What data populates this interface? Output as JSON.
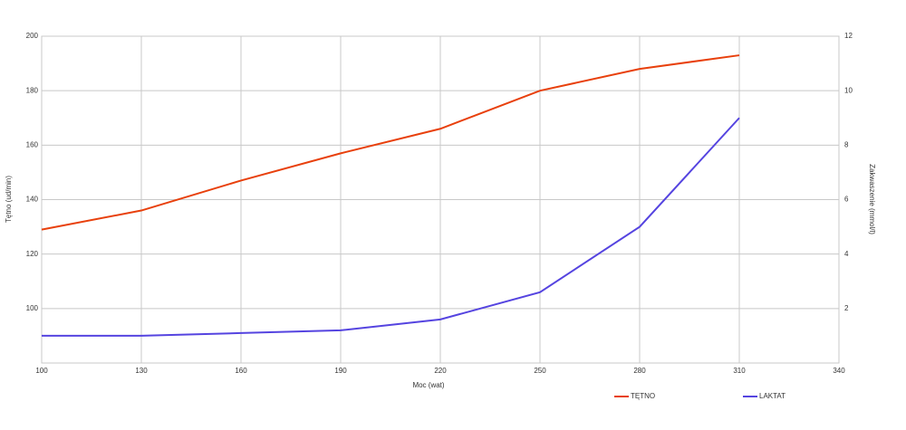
{
  "chart_data": {
    "type": "line",
    "x": [
      100,
      130,
      160,
      190,
      220,
      250,
      280,
      310
    ],
    "xlim": [
      100,
      340
    ],
    "xticks": [
      100,
      130,
      160,
      190,
      220,
      250,
      280,
      310,
      340
    ],
    "ylim": [
      80,
      200
    ],
    "yticks": [
      100,
      120,
      140,
      160,
      180,
      200
    ],
    "y2lim": [
      0,
      12
    ],
    "y2ticks": [
      2,
      4,
      6,
      8,
      10,
      12
    ],
    "x_label": "Moc (wat)",
    "y_label": "Tętno (ud/min)",
    "y2_label": "Zakwaszenie (mmol/l)",
    "grid": true,
    "legend": "bottom",
    "series": [
      {
        "name": "TĘTNO",
        "color": "#e8400c",
        "values": [
          129,
          136,
          147,
          157,
          166,
          180,
          188,
          193
        ]
      },
      {
        "name": "LAKTAT",
        "color": "#5544e0",
        "axis": "y2",
        "values": [
          1.0,
          1.0,
          1.1,
          1.2,
          1.6,
          2.6,
          5.0,
          9.0
        ]
      }
    ]
  }
}
